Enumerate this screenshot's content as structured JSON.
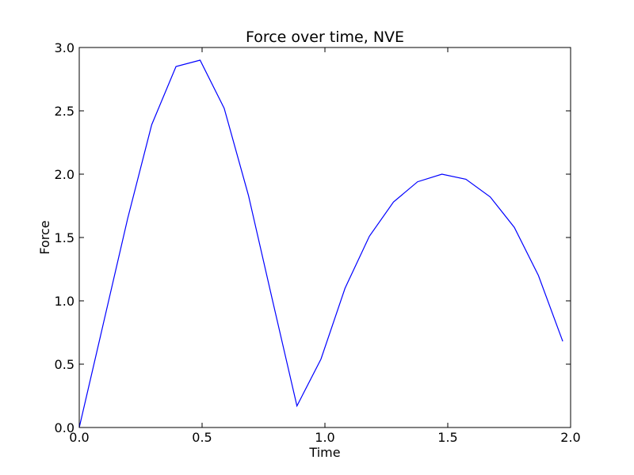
{
  "chart_data": {
    "type": "line",
    "title": "Force over time, NVE",
    "xlabel": "Time",
    "ylabel": "Force",
    "xlim": [
      0.0,
      2.0
    ],
    "ylim": [
      0.0,
      3.0
    ],
    "xticks": [
      0.0,
      0.5,
      1.0,
      1.5,
      2.0
    ],
    "xtick_labels": [
      "0.0",
      "0.5",
      "1.0",
      "1.5",
      "2.0"
    ],
    "yticks": [
      0.0,
      0.5,
      1.0,
      1.5,
      2.0,
      2.5,
      3.0
    ],
    "ytick_labels": [
      "0.0",
      "0.5",
      "1.0",
      "1.5",
      "2.0",
      "2.5",
      "3.0"
    ],
    "grid": false,
    "line_color": "#0000ff",
    "series": [
      {
        "x": [
          0.0,
          0.098,
          0.197,
          0.295,
          0.394,
          0.492,
          0.59,
          0.689,
          0.787,
          0.886,
          0.984,
          1.082,
          1.181,
          1.279,
          1.377,
          1.476,
          1.574,
          1.673,
          1.771,
          1.869,
          1.968
        ],
        "y": [
          0.0,
          0.82,
          1.65,
          2.39,
          2.85,
          2.9,
          2.52,
          1.83,
          1.0,
          0.17,
          0.54,
          1.1,
          1.51,
          1.78,
          1.94,
          2.0,
          1.96,
          1.82,
          1.58,
          1.2,
          0.68
        ]
      }
    ]
  }
}
